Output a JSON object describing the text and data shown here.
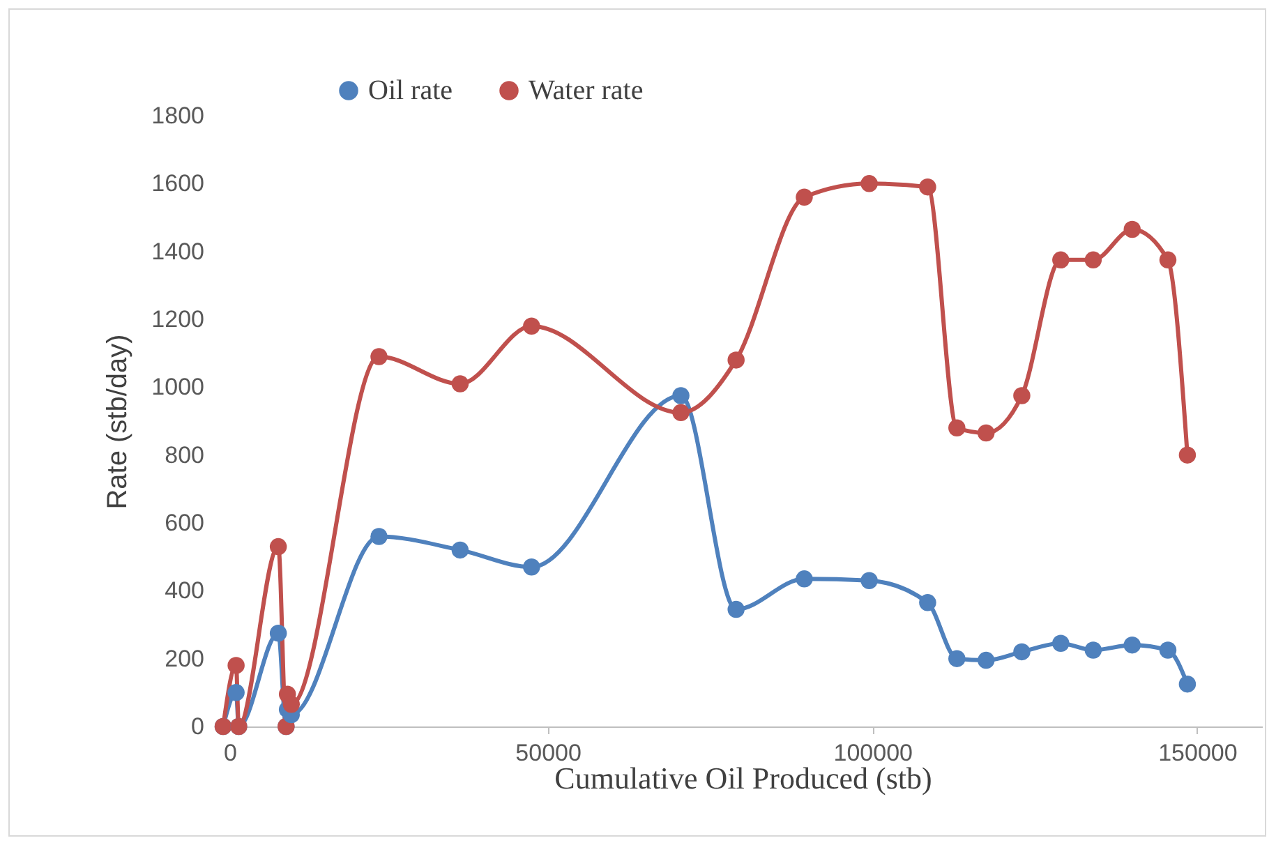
{
  "chart_data": {
    "type": "line",
    "xlabel": "Cumulative Oil Produced (stb)",
    "ylabel": "Rate (stb/day)",
    "x": [
      0,
      2000,
      2400,
      8500,
      9700,
      9900,
      10500,
      24000,
      36500,
      47500,
      70500,
      79000,
      89500,
      99500,
      108500,
      113000,
      117500,
      123000,
      129000,
      134000,
      140000,
      145500,
      148500
    ],
    "series": [
      {
        "name": "Oil rate",
        "color": "#4f81bd",
        "values": [
          0,
          100,
          0,
          275,
          0,
          50,
          35,
          560,
          520,
          470,
          975,
          345,
          435,
          430,
          365,
          200,
          195,
          220,
          245,
          225,
          240,
          225,
          125
        ]
      },
      {
        "name": "Water rate",
        "color": "#c0504d",
        "values": [
          0,
          180,
          0,
          530,
          0,
          95,
          65,
          1090,
          1010,
          1180,
          925,
          1080,
          1560,
          1600,
          1590,
          880,
          865,
          975,
          1375,
          1375,
          1465,
          1375,
          800
        ]
      }
    ],
    "xlim": [
      0,
      160000
    ],
    "xticks": [
      0,
      50000,
      100000,
      150000
    ],
    "ylim": [
      0,
      1800
    ],
    "yticks": [
      0,
      200,
      400,
      600,
      800,
      1000,
      1200,
      1400,
      1600,
      1800
    ],
    "grid": false,
    "legend": "top",
    "marker": "circle",
    "line_style": "solid"
  }
}
